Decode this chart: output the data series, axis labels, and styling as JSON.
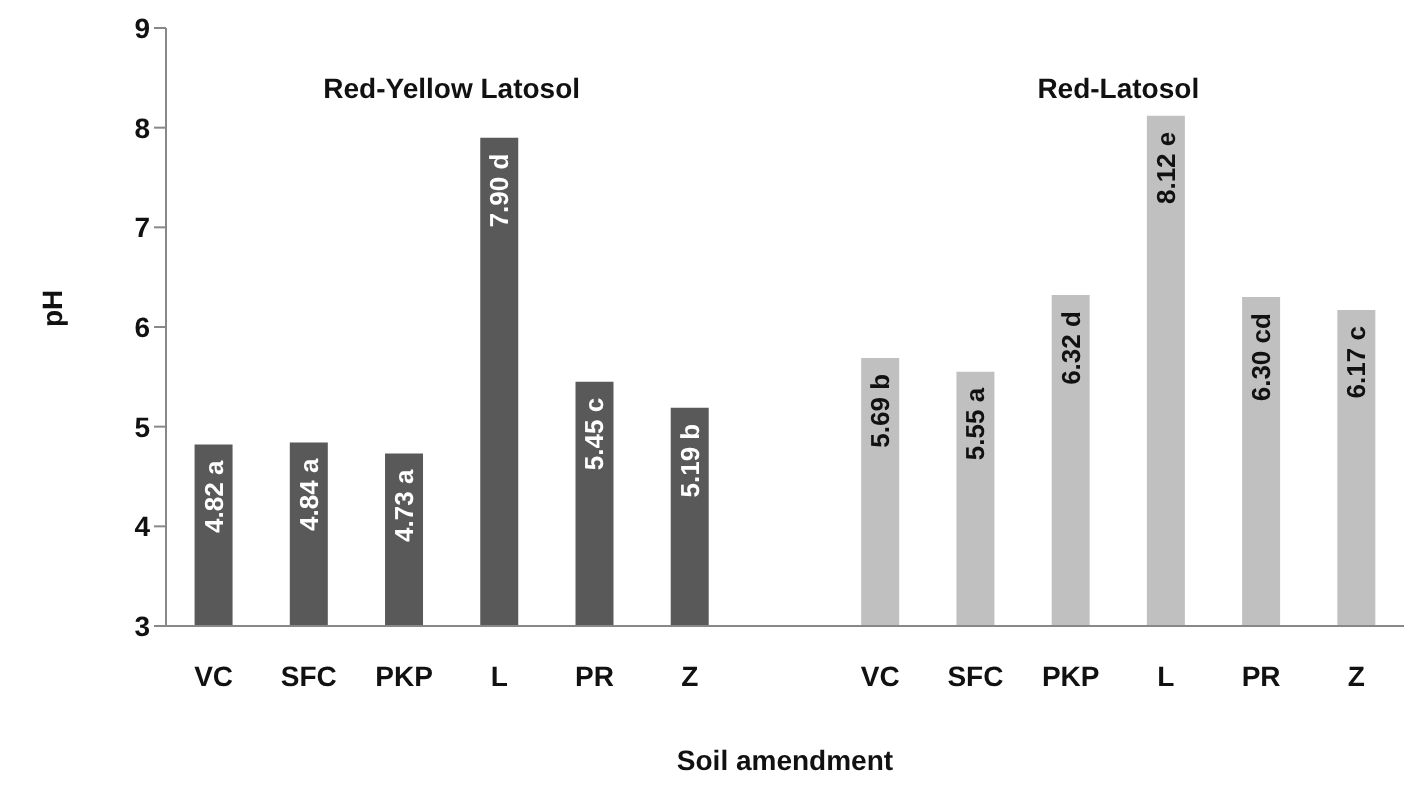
{
  "chart_data": {
    "type": "bar",
    "xlabel": "Soil amendment",
    "ylabel": "pH",
    "categories": [
      "VC",
      "SFC",
      "PKP",
      "L",
      "PR",
      "Z",
      null,
      "VC",
      "SFC",
      "PKP",
      "L",
      "PR",
      "Z"
    ],
    "series": [
      {
        "name": "Red-Yellow Latosol",
        "color": "#595959",
        "values": [
          4.82,
          4.84,
          4.73,
          7.9,
          5.45,
          5.19,
          null,
          null,
          null,
          null,
          null,
          null,
          null
        ],
        "value_labels": [
          "4.82 a",
          "4.84 a",
          "4.73 a",
          "7.90 d",
          "5.45 c",
          "5.19 b",
          null,
          null,
          null,
          null,
          null,
          null,
          null
        ]
      },
      {
        "name": "Red-Latosol",
        "color": "#c0c0c0",
        "values": [
          null,
          null,
          null,
          null,
          null,
          null,
          null,
          5.69,
          5.55,
          6.32,
          8.12,
          6.3,
          6.17
        ],
        "value_labels": [
          null,
          null,
          null,
          null,
          null,
          null,
          null,
          "5.69 b",
          "5.55 a",
          "6.32 d",
          "8.12 e",
          "6.30 cd",
          "6.17 c"
        ]
      }
    ],
    "ylim": [
      3,
      9
    ],
    "yticks": [
      3,
      4,
      5,
      6,
      7,
      8,
      9
    ],
    "grid": false,
    "legend": false
  }
}
